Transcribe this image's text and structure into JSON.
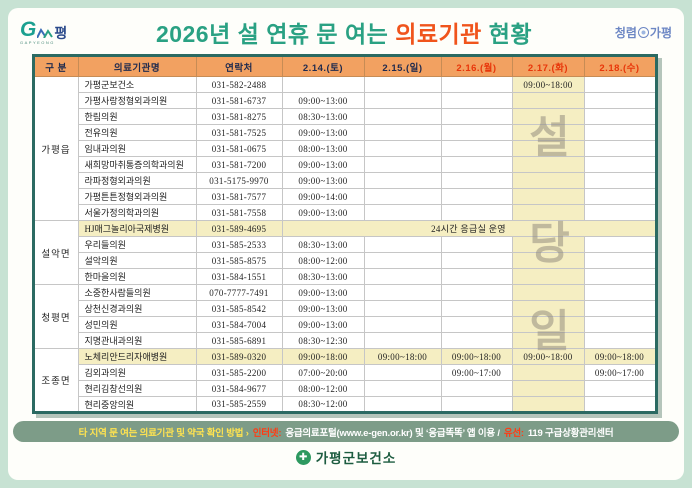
{
  "header": {
    "logo_left": {
      "g": "G",
      "pyeong": "평",
      "sub": "GAPYEONG"
    },
    "title": {
      "prefix": "2026년 설 연휴 문 여는 ",
      "highlight": "의료기관",
      "suffix": " 현황"
    },
    "logo_right": {
      "left": "청렴",
      "right": "가평"
    }
  },
  "table": {
    "columns": [
      {
        "label": "구 분",
        "holiday": false
      },
      {
        "label": "의료기관명",
        "holiday": false
      },
      {
        "label": "연락처",
        "holiday": false
      },
      {
        "label": "2.14.(토)",
        "holiday": false
      },
      {
        "label": "2.15.(일)",
        "holiday": false
      },
      {
        "label": "2.16.(월)",
        "holiday": true
      },
      {
        "label": "2.17.(화)",
        "holiday": true
      },
      {
        "label": "2.18.(수)",
        "holiday": true
      }
    ],
    "watermark_letters": [
      "설",
      "당",
      "일"
    ],
    "emergency_note": "24시간 응급실 운영",
    "groups": [
      {
        "name": "가평읍",
        "rows": [
          {
            "name": "가평군보건소",
            "phone": "031-582-2488",
            "times": [
              "",
              "",
              "",
              "09:00~18:00",
              ""
            ]
          },
          {
            "name": "가평사랑정형외과의원",
            "phone": "031-581-6737",
            "times": [
              "09:00~13:00",
              "",
              "",
              "",
              ""
            ]
          },
          {
            "name": "한림의원",
            "phone": "031-581-8275",
            "times": [
              "08:30~13:00",
              "",
              "",
              "",
              ""
            ]
          },
          {
            "name": "전유의원",
            "phone": "031-581-7525",
            "times": [
              "09:00~13:00",
              "",
              "",
              "",
              ""
            ]
          },
          {
            "name": "임내과의원",
            "phone": "031-581-0675",
            "times": [
              "08:00~13:00",
              "",
              "",
              "",
              ""
            ]
          },
          {
            "name": "새희망마취통증의학과의원",
            "phone": "031-581-7200",
            "times": [
              "09:00~13:00",
              "",
              "",
              "",
              ""
            ]
          },
          {
            "name": "라파정형외과의원",
            "phone": "031-5175-9970",
            "times": [
              "09:00~13:00",
              "",
              "",
              "",
              ""
            ]
          },
          {
            "name": "가평튼튼정형외과의원",
            "phone": "031-581-7577",
            "times": [
              "09:00~14:00",
              "",
              "",
              "",
              ""
            ]
          },
          {
            "name": "서울가정의학과의원",
            "phone": "031-581-7558",
            "times": [
              "09:00~13:00",
              "",
              "",
              "",
              ""
            ]
          }
        ]
      },
      {
        "name": "설악면",
        "rows": [
          {
            "name": "HJ매그놀리아국제병원",
            "phone": "031-589-4695",
            "note_span": true,
            "highlight": true
          },
          {
            "name": "우리들의원",
            "phone": "031-585-2533",
            "times": [
              "08:30~13:00",
              "",
              "",
              "",
              ""
            ]
          },
          {
            "name": "설악의원",
            "phone": "031-585-8575",
            "times": [
              "08:00~12:00",
              "",
              "",
              "",
              ""
            ]
          },
          {
            "name": "한마을의원",
            "phone": "031-584-1551",
            "times": [
              "08:30~13:00",
              "",
              "",
              "",
              ""
            ]
          }
        ]
      },
      {
        "name": "청평면",
        "rows": [
          {
            "name": "소중한사람들의원",
            "phone": "070-7777-7491",
            "times": [
              "09:00~13:00",
              "",
              "",
              "",
              ""
            ]
          },
          {
            "name": "상천신경과의원",
            "phone": "031-585-8542",
            "times": [
              "09:00~13:00",
              "",
              "",
              "",
              ""
            ]
          },
          {
            "name": "성민의원",
            "phone": "031-584-7004",
            "times": [
              "09:00~13:00",
              "",
              "",
              "",
              ""
            ]
          },
          {
            "name": "지명관내과의원",
            "phone": "031-585-6891",
            "times": [
              "08:30~12:30",
              "",
              "",
              "",
              ""
            ]
          }
        ]
      },
      {
        "name": "조종면",
        "rows": [
          {
            "name": "노체리안드리자애병원",
            "phone": "031-589-0320",
            "times": [
              "09:00~18:00",
              "09:00~18:00",
              "09:00~18:00",
              "09:00~18:00",
              "09:00~18:00"
            ],
            "highlight": true
          },
          {
            "name": "김외과의원",
            "phone": "031-585-2200",
            "times": [
              "07:00~20:00",
              "",
              "09:00~17:00",
              "",
              "09:00~17:00"
            ]
          },
          {
            "name": "현리김창선의원",
            "phone": "031-584-9677",
            "times": [
              "08:00~12:00",
              "",
              "",
              "",
              ""
            ]
          },
          {
            "name": "현리중앙의원",
            "phone": "031-585-2559",
            "times": [
              "08:30~12:00",
              "",
              "",
              "",
              ""
            ]
          }
        ]
      }
    ]
  },
  "footer": {
    "parts": [
      {
        "text": "타 지역 문 여는 의료기관 및 약국 확인 방법 ›",
        "tone": "yellow"
      },
      {
        "text": "인터넷:",
        "tone": "red"
      },
      {
        "text": "응급의료포털(www.e-gen.or.kr) 및 ‘응급똑똑’ 앱 이용 /",
        "tone": "white"
      },
      {
        "text": "유선:",
        "tone": "red"
      },
      {
        "text": "119 구급상황관리센터",
        "tone": "white"
      }
    ],
    "org_name": "가평군보건소"
  }
}
